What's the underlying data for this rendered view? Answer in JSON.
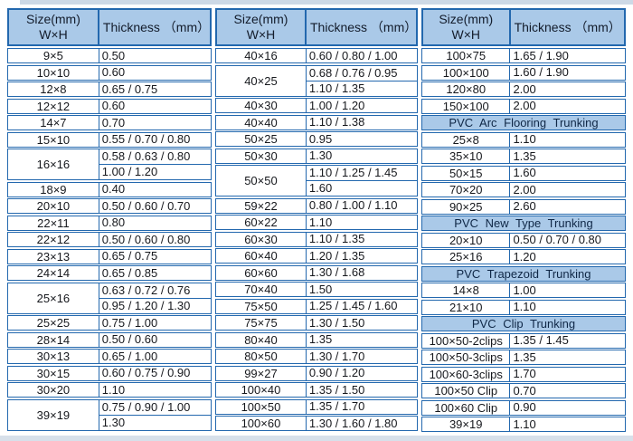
{
  "colors": {
    "border": "#2368ae",
    "header_bg": "#aac9e8",
    "text": "#16181d",
    "section_text": "#0f2746",
    "top_band": "#cdd9e6",
    "bottom_band": "#d7e0ea"
  },
  "tables": [
    {
      "header": {
        "size_line1": "Size(mm)",
        "size_line2": "W×H",
        "thickness": "Thickness （mm）"
      },
      "rows": [
        {
          "size": "9×5",
          "thickness": [
            "0.50"
          ]
        },
        {
          "size": "10×10",
          "thickness": [
            "0.60"
          ]
        },
        {
          "size": "12×8",
          "thickness": [
            "0.65 / 0.75"
          ]
        },
        {
          "size": "12×12",
          "thickness": [
            "0.60"
          ]
        },
        {
          "size": "14×7",
          "thickness": [
            "0.70"
          ]
        },
        {
          "size": "15×10",
          "thickness": [
            "0.55 / 0.70 / 0.80"
          ]
        },
        {
          "size": "16×16",
          "thickness": [
            "0.58 / 0.63 / 0.80",
            "1.00 / 1.20"
          ]
        },
        {
          "size": "18×9",
          "thickness": [
            "0.40"
          ]
        },
        {
          "size": "20×10",
          "thickness": [
            "0.50 / 0.60 / 0.70"
          ]
        },
        {
          "size": "22×11",
          "thickness": [
            "0.80"
          ]
        },
        {
          "size": "22×12",
          "thickness": [
            "0.50 / 0.60 / 0.80"
          ]
        },
        {
          "size": "23×13",
          "thickness": [
            "0.65 / 0.75"
          ]
        },
        {
          "size": "24×14",
          "thickness": [
            "0.65 / 0.85"
          ]
        },
        {
          "size": "25×16",
          "thickness": [
            "0.63 / 0.72 / 0.76",
            "0.95 / 1.20 / 1.30"
          ]
        },
        {
          "size": "25×25",
          "thickness": [
            "0.75 / 1.00"
          ]
        },
        {
          "size": "28×14",
          "thickness": [
            "0.50 / 0.60"
          ]
        },
        {
          "size": "30×13",
          "thickness": [
            "0.65 / 1.00"
          ]
        },
        {
          "size": "30×15",
          "thickness": [
            "0.60 / 0.75 / 0.90"
          ]
        },
        {
          "size": "30×20",
          "thickness": [
            "1.10"
          ]
        },
        {
          "size": "39×19",
          "thickness": [
            "0.75 / 0.90 / 1.00",
            "1.30"
          ]
        }
      ]
    },
    {
      "header": {
        "size_line1": "Size(mm)",
        "size_line2": "W×H",
        "thickness": "Thickness （mm）"
      },
      "rows": [
        {
          "size": "40×16",
          "thickness": [
            "0.60 / 0.80 / 1.00"
          ]
        },
        {
          "size": "40×25",
          "thickness": [
            "0.68 / 0.76 / 0.95",
            "1.10 / 1.35"
          ]
        },
        {
          "size": "40×30",
          "thickness": [
            "1.00 / 1.20"
          ]
        },
        {
          "size": "40×40",
          "thickness": [
            "1.10 / 1.38"
          ]
        },
        {
          "size": "50×25",
          "thickness": [
            "0.95"
          ]
        },
        {
          "size": "50×30",
          "thickness": [
            "1.30"
          ]
        },
        {
          "size": "50×50",
          "thickness": [
            "1.10 / 1.25 / 1.45",
            "1.60"
          ]
        },
        {
          "size": "59×22",
          "thickness": [
            "0.80 / 1.00 / 1.10"
          ]
        },
        {
          "size": "60×22",
          "thickness": [
            "1.10"
          ]
        },
        {
          "size": "60×30",
          "thickness": [
            "1.10 / 1.35"
          ]
        },
        {
          "size": "60×40",
          "thickness": [
            "1.20 / 1.35"
          ]
        },
        {
          "size": "60×60",
          "thickness": [
            "1.30 / 1.68"
          ]
        },
        {
          "size": "70×40",
          "thickness": [
            "1.50"
          ]
        },
        {
          "size": "75×50",
          "thickness": [
            "1.25 / 1.45 / 1.60"
          ]
        },
        {
          "size": "75×75",
          "thickness": [
            "1.30 / 1.50"
          ]
        },
        {
          "size": "80×40",
          "thickness": [
            "1.35"
          ]
        },
        {
          "size": "80×50",
          "thickness": [
            "1.30 / 1.70"
          ]
        },
        {
          "size": "99×27",
          "thickness": [
            "0.90 / 1.20"
          ]
        },
        {
          "size": "100×40",
          "thickness": [
            "1.35 / 1.50"
          ]
        },
        {
          "size": "100×50",
          "thickness": [
            "1.35 / 1.70"
          ]
        },
        {
          "size": "100×60",
          "thickness": [
            "1.30 / 1.60 / 1.80"
          ]
        }
      ]
    },
    {
      "header": {
        "size_line1": "Size(mm)",
        "size_line2": "W×H",
        "thickness": "Thickness （mm）"
      },
      "rows": [
        {
          "size": "100×75",
          "thickness": [
            "1.65 / 1.90"
          ]
        },
        {
          "size": "100×100",
          "thickness": [
            "1.60 / 1.90"
          ]
        },
        {
          "size": "120×80",
          "thickness": [
            "2.00"
          ]
        },
        {
          "size": "150×100",
          "thickness": [
            "2.00"
          ]
        },
        {
          "section": "PVC Arc Flooring Trunking"
        },
        {
          "size": "25×8",
          "thickness": [
            "1.10"
          ]
        },
        {
          "size": "35×10",
          "thickness": [
            "1.35"
          ]
        },
        {
          "size": "50×15",
          "thickness": [
            "1.60"
          ]
        },
        {
          "size": "70×20",
          "thickness": [
            "2.00"
          ]
        },
        {
          "size": "90×25",
          "thickness": [
            "2.60"
          ]
        },
        {
          "section": "PVC New Type Trunking"
        },
        {
          "size": "20×10",
          "thickness": [
            "0.50 / 0.70 / 0.80"
          ]
        },
        {
          "size": "25×16",
          "thickness": [
            "1.20"
          ]
        },
        {
          "section": "PVC Trapezoid Trunking"
        },
        {
          "size": "14×8",
          "thickness": [
            "1.00"
          ]
        },
        {
          "size": "21×10",
          "thickness": [
            "1.10"
          ]
        },
        {
          "section": "PVC Clip Trunking"
        },
        {
          "size": "100×50-2clips",
          "thickness": [
            "1.35 / 1.45"
          ]
        },
        {
          "size": "100×50-3clips",
          "thickness": [
            "1.35"
          ]
        },
        {
          "size": "100×60-3clips",
          "thickness": [
            "1.70"
          ]
        },
        {
          "size": "100×50 Clip",
          "thickness": [
            "0.70"
          ]
        },
        {
          "size": "100×60 Clip",
          "thickness": [
            "0.90"
          ]
        },
        {
          "size": "39×19",
          "thickness": [
            "1.10"
          ]
        }
      ]
    }
  ]
}
